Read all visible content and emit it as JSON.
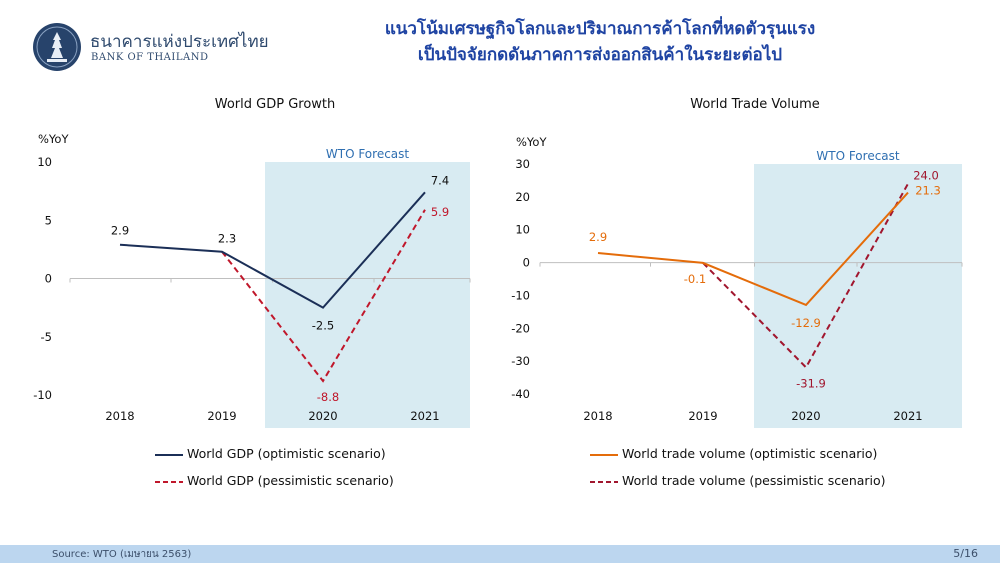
{
  "header": {
    "org_thai": "ธนาคารแห่งประเทศไทย",
    "org_en": "BANK OF THAILAND",
    "title_line1": "แนวโน้มเศรษฐกิจโลกและปริมาณการค้าโลกที่หดตัวรุนแรง",
    "title_line2": "เป็นปัจจัยกดดันภาคการส่งออกสินค้าในระยะต่อไป"
  },
  "colors": {
    "title": "#1f44a3",
    "forecast_band": "#d8ebf2",
    "gdp_optimistic": "#1b2f57",
    "gdp_pessimistic": "#c0172b",
    "trade_optimistic": "#e46c0a",
    "trade_pessimistic": "#a1162e"
  },
  "chart_data": [
    {
      "type": "line",
      "title": "World GDP Growth",
      "ylabel": "%YoY",
      "ylim": [
        -10,
        10
      ],
      "yticks": [
        10,
        5,
        0,
        -5,
        -10
      ],
      "categories": [
        "2018",
        "2019",
        "2020",
        "2021"
      ],
      "forecast_label": "WTO Forecast",
      "series": [
        {
          "name": "World GDP (optimistic scenario)",
          "values": [
            2.9,
            2.3,
            -2.5,
            7.4
          ],
          "labels": [
            "2.9",
            "2.3",
            "-2.5",
            "7.4"
          ],
          "style": "solid",
          "color_key": "gdp_optimistic"
        },
        {
          "name": "World GDP (pessimistic scenario)",
          "values": [
            null,
            2.3,
            -8.8,
            5.9
          ],
          "labels": [
            null,
            null,
            "-8.8",
            "5.9"
          ],
          "style": "dashed",
          "color_key": "gdp_pessimistic"
        }
      ]
    },
    {
      "type": "line",
      "title": "World Trade Volume",
      "ylabel": "%YoY",
      "ylim": [
        -40,
        30
      ],
      "yticks": [
        30,
        20,
        10,
        0,
        -10,
        -20,
        -30,
        -40
      ],
      "categories": [
        "2018",
        "2019",
        "2020",
        "2021"
      ],
      "forecast_label": "WTO Forecast",
      "series": [
        {
          "name": "World trade volume (optimistic scenario)",
          "values": [
            2.9,
            -0.1,
            -12.9,
            21.3
          ],
          "labels": [
            "2.9",
            "-0.1",
            "-12.9",
            "21.3"
          ],
          "style": "solid",
          "color_key": "trade_optimistic"
        },
        {
          "name": "World trade volume (pessimistic scenario)",
          "values": [
            null,
            -0.1,
            -31.9,
            24.0
          ],
          "labels": [
            null,
            null,
            "-31.9",
            "24.0"
          ],
          "style": "dashed",
          "color_key": "trade_pessimistic"
        }
      ]
    }
  ],
  "footer": {
    "source": "Source: WTO (เมษายน 2563)",
    "page": "5/16"
  }
}
